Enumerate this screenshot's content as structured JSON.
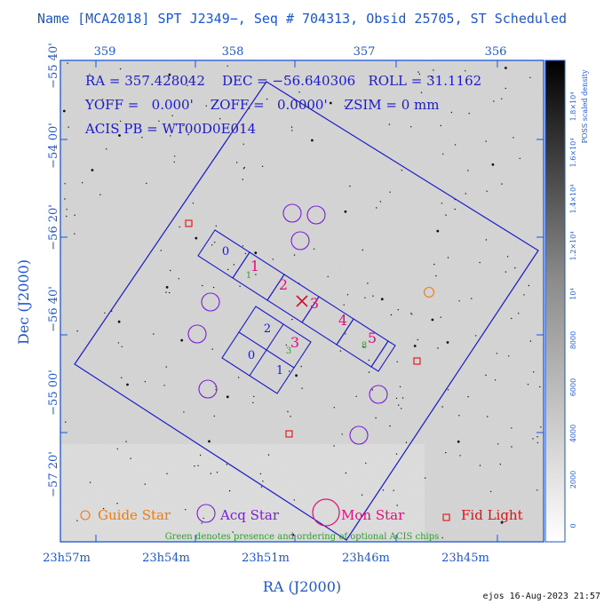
{
  "title": "Name [MCA2018] SPT J2349−, Seq # 704313, Obsid 25705, ST Scheduled",
  "info": {
    "line1": "RA = 357.428042    DEC = −56.640306   ROLL = 31.1162",
    "line2": "YOFF =   0.000'    ZOFF =   0.0000'    ZSIM = 0 mm",
    "line3": "ACIS PB = WT00D0E014"
  },
  "axes": {
    "top_ticks": [
      "359",
      "358",
      "357",
      "356"
    ],
    "bottom_ticks": [
      "23h57m",
      "23h54m",
      "23h51m",
      "23h46m",
      "23h45m"
    ],
    "left_ticks": [
      "−55 40'",
      "−54 00'",
      "−56 20'",
      "−56 40'",
      "−55 00'",
      "−57 20'"
    ],
    "xlabel": "RA (J2000)",
    "ylabel": "Dec (J2000)"
  },
  "colorbar": {
    "label": "POSS scaled density",
    "ticks": [
      "0",
      "2000",
      "4000",
      "6000",
      "8000",
      "10⁴",
      "1.2×10⁴",
      "1.4×10⁴",
      "1.6×10⁴",
      "1.8×10⁴"
    ]
  },
  "chips": {
    "row": [
      "0",
      "1",
      "2",
      "3",
      "4",
      "5"
    ],
    "block": [
      "2",
      "3",
      "0",
      "1"
    ],
    "optional": [
      "1",
      "3",
      "8"
    ]
  },
  "legend": {
    "guide": "Guide Star",
    "acq": "Acq Star",
    "mon": "Mon Star",
    "fid": "Fid Light",
    "note": "Green denotes presence and ordering of optional ACIS chips"
  },
  "colors": {
    "frame": "#1a56d6",
    "chip_blue": "#1a1acc",
    "chip_magenta": "#e0107a",
    "optional_green": "#2e9e2e",
    "acq": "#7a1fd6",
    "guide": "#f07a10",
    "fid": "#e01010",
    "target": "#d01030"
  },
  "signature": "ejos 16-Aug-2023 21:57"
}
